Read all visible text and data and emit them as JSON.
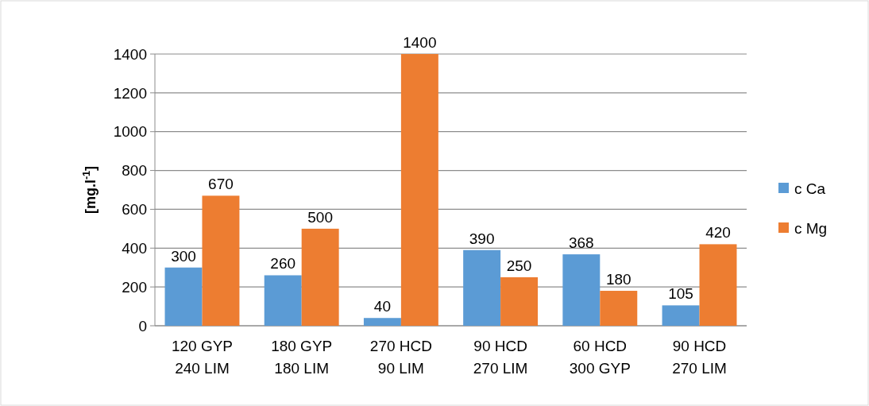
{
  "chart_data": {
    "type": "bar",
    "ylabel": "[mg.l$^{-1}$]",
    "categories": [
      "120 GYP\n240 LIM",
      "180 GYP\n180 LIM",
      "270 HCD\n90 LIM",
      "90 HCD\n270 LIM",
      "60 HCD\n300 GYP",
      "90 HCD\n270 LIM"
    ],
    "series": [
      {
        "name": "c Ca",
        "color": "#5b9bd5",
        "values": [
          300,
          260,
          40,
          390,
          368,
          105
        ]
      },
      {
        "name": "c Mg",
        "color": "#ed7d31",
        "values": [
          670,
          500,
          1400,
          250,
          180,
          420
        ]
      }
    ],
    "ylim": [
      0,
      1400
    ],
    "yticks": [
      0,
      200,
      400,
      600,
      800,
      1000,
      1200,
      1400
    ],
    "grid": "y",
    "legend": "right",
    "data_labels": true
  }
}
